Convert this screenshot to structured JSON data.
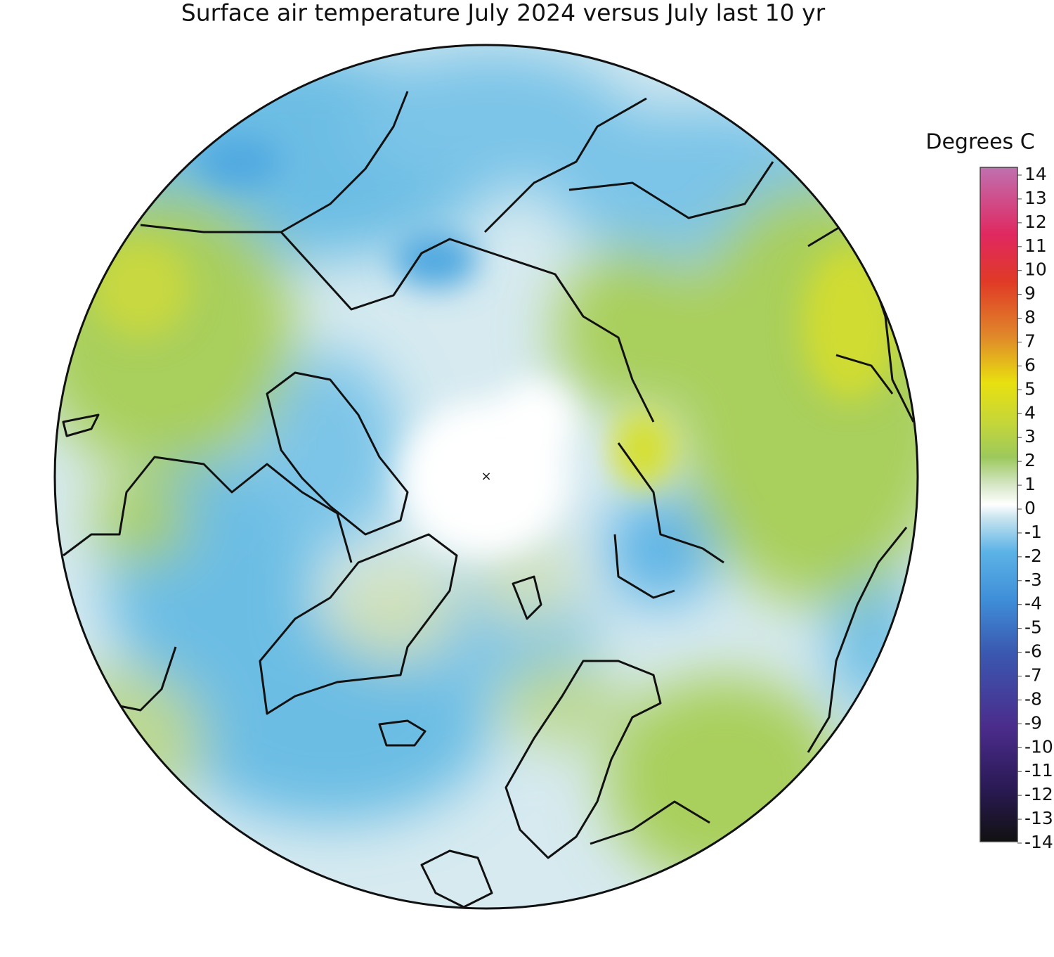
{
  "title": "Surface air temperature July 2024 versus July last 10 yr",
  "colorbar": {
    "label": "Degrees C",
    "range": [
      -14,
      14
    ],
    "ticks": [
      14,
      13,
      12,
      11,
      10,
      9,
      8,
      7,
      6,
      5,
      4,
      3,
      2,
      1,
      0,
      -1,
      -2,
      -3,
      -4,
      -5,
      -6,
      -7,
      -8,
      -9,
      -10,
      -11,
      -12,
      -13,
      -14
    ]
  }
}
